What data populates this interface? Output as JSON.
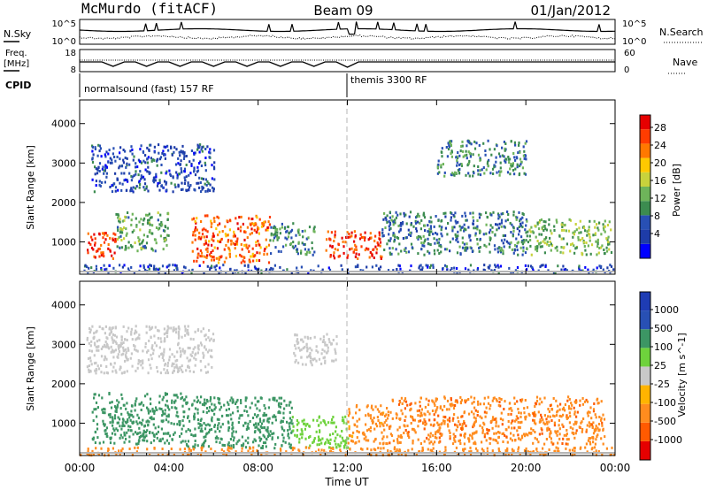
{
  "header": {
    "station": "McMurdo (fitACF)",
    "beam": "Beam 09",
    "date": "01/Jan/2012"
  },
  "noise_panel": {
    "left_label": "N.Sky",
    "right_label": "N.Search",
    "left_ticks": [
      "10^5",
      "10^0"
    ],
    "right_ticks": [
      "10^5",
      "10^0"
    ]
  },
  "freq_panel": {
    "left_label_1": "Freq.",
    "left_label_2": "[MHz]",
    "left_ticks": [
      "18",
      "8"
    ],
    "right_label": "Nave",
    "right_ticks": [
      "60",
      "0"
    ]
  },
  "cpid": {
    "label": "CPID",
    "segments": [
      {
        "name": "normalsound (fast) 157 RF",
        "start_hour": 0
      },
      {
        "name": "themis 3300 RF",
        "start_hour": 12
      }
    ]
  },
  "x_axis": {
    "label": "Time UT",
    "ticks": [
      "00:00",
      "04:00",
      "08:00",
      "12:00",
      "16:00",
      "20:00",
      "00:00"
    ]
  },
  "chart_data": [
    {
      "type": "heatmap",
      "name": "power",
      "ylabel": "Slant Range [km]",
      "yticks": [
        "1000",
        "2000",
        "3000",
        "4000"
      ],
      "ylim": [
        180,
        4600
      ],
      "xlim_hours": [
        0,
        24
      ],
      "colorbar_label": "Power [dB]",
      "colorbar_ticks": [
        "28",
        "24",
        "20",
        "16",
        "12",
        "8",
        "4"
      ],
      "colorbar_colors": [
        "#0000ff",
        "#1e3ca8",
        "#2850b4",
        "#3c8c50",
        "#6eb45a",
        "#c8d23c",
        "#ffc800",
        "#ff7800",
        "#ff3c00",
        "#e60000"
      ],
      "regions": [
        {
          "t0": 0.3,
          "t1": 1.6,
          "r0": 600,
          "r1": 1300,
          "v": 26
        },
        {
          "t0": 1.6,
          "t1": 4.0,
          "r0": 800,
          "r1": 1800,
          "v": 12
        },
        {
          "t0": 5.0,
          "t1": 8.5,
          "r0": 500,
          "r1": 1700,
          "v": 24
        },
        {
          "t0": 8.5,
          "t1": 10.5,
          "r0": 700,
          "r1": 1500,
          "v": 10
        },
        {
          "t0": 11.0,
          "t1": 13.5,
          "r0": 600,
          "r1": 1300,
          "v": 26
        },
        {
          "t0": 13.5,
          "t1": 20.0,
          "r0": 700,
          "r1": 1800,
          "v": 9
        },
        {
          "t0": 20.0,
          "t1": 23.8,
          "r0": 700,
          "r1": 1600,
          "v": 14
        },
        {
          "t0": 0.5,
          "t1": 6.0,
          "r0": 2300,
          "r1": 3500,
          "v": 6
        },
        {
          "t0": 16.0,
          "t1": 20.0,
          "r0": 2700,
          "r1": 3600,
          "v": 10
        },
        {
          "t0": 0.0,
          "t1": 24.0,
          "r0": 250,
          "r1": 450,
          "v": 6
        }
      ]
    },
    {
      "type": "heatmap",
      "name": "velocity",
      "ylabel": "Slant Range [km]",
      "yticks": [
        "1000",
        "2000",
        "3000",
        "4000"
      ],
      "ylim": [
        180,
        4600
      ],
      "xlim_hours": [
        0,
        24
      ],
      "colorbar_label": "Velocity [m s^-1]",
      "colorbar_ticks": [
        "1000",
        "500",
        "100",
        "25",
        "-25",
        "-100",
        "-500",
        "-1000"
      ],
      "colorbar_colors": [
        "#e60000",
        "#ff5a00",
        "#ff8c1e",
        "#ffb400",
        "#c8c8c8",
        "#6ed23c",
        "#3c9664",
        "#2850b4",
        "#1e3cb4"
      ],
      "regions": [
        {
          "t0": 0.5,
          "t1": 4.5,
          "r0": 500,
          "r1": 1800,
          "v": 300
        },
        {
          "t0": 4.5,
          "t1": 9.5,
          "r0": 400,
          "r1": 1700,
          "v": 350
        },
        {
          "t0": 9.5,
          "t1": 12.0,
          "r0": 400,
          "r1": 1200,
          "v": 60
        },
        {
          "t0": 12.0,
          "t1": 13.8,
          "r0": 500,
          "r1": 1500,
          "v": -150
        },
        {
          "t0": 13.8,
          "t1": 23.5,
          "r0": 500,
          "r1": 1700,
          "v": -400
        },
        {
          "t0": 0.3,
          "t1": 6.0,
          "r0": 2300,
          "r1": 3500,
          "v": 0
        },
        {
          "t0": 9.5,
          "t1": 11.5,
          "r0": 2500,
          "r1": 3300,
          "v": 0
        },
        {
          "t0": 0.0,
          "t1": 24.0,
          "r0": 220,
          "r1": 420,
          "v": -200
        }
      ]
    }
  ]
}
